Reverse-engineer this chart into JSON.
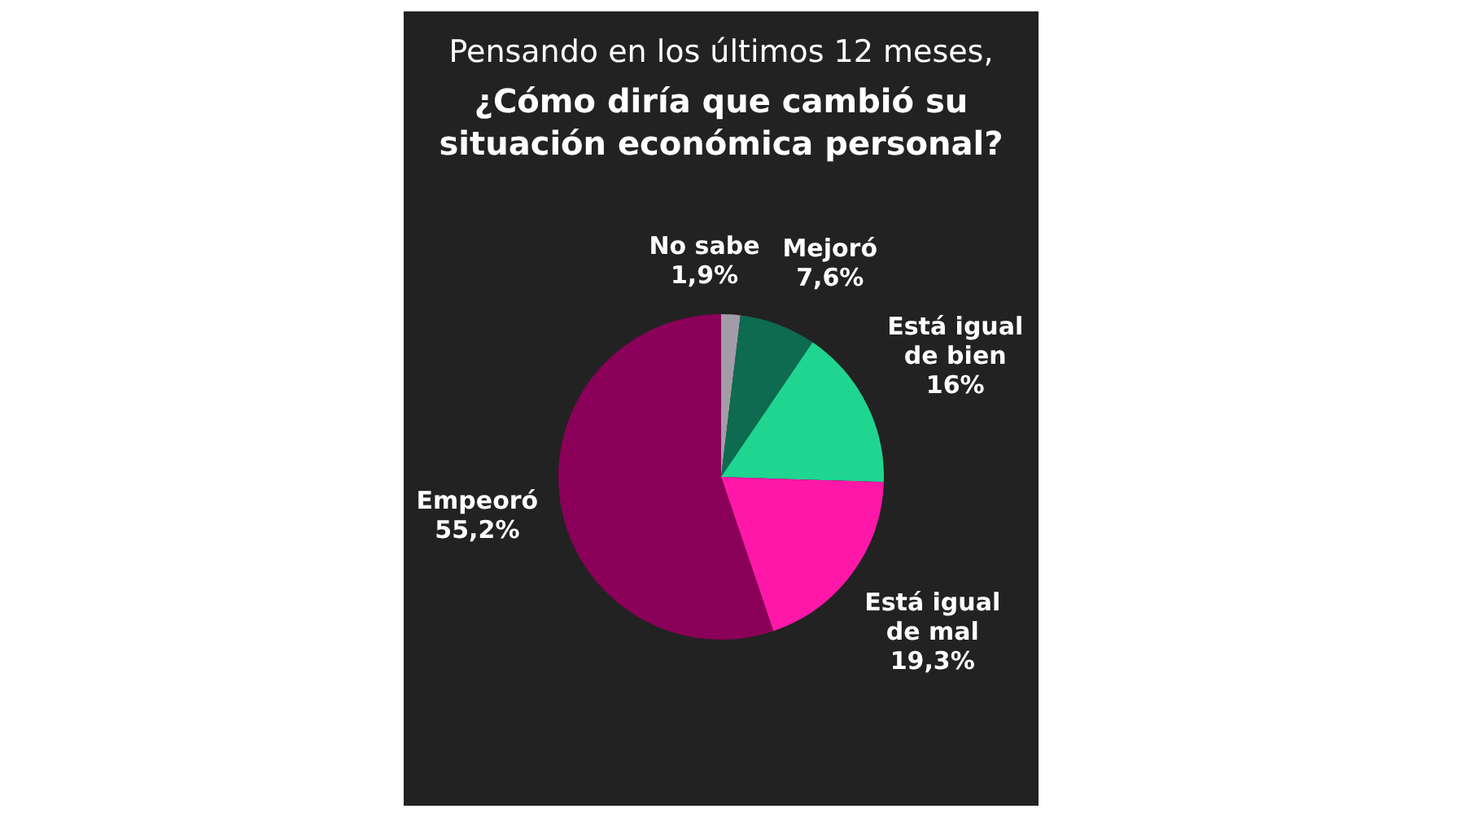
{
  "chart_data": {
    "type": "pie",
    "subtitle": "Pensando en los últimos 12 meses,",
    "title": "¿Cómo diría que cambió su situación económica personal?",
    "categories": [
      "No sabe",
      "Mejoró",
      "Está igual de bien",
      "Está igual de mal",
      "Empeoró"
    ],
    "values": [
      1.9,
      7.6,
      16,
      19.3,
      55.2
    ],
    "value_labels": [
      "1,9%",
      "7,6%",
      "16%",
      "19,3%",
      "55,2%"
    ],
    "colors": [
      "#a39ca8",
      "#0e6b50",
      "#20d590",
      "#ff18a8",
      "#8a0058"
    ],
    "legend": false
  }
}
